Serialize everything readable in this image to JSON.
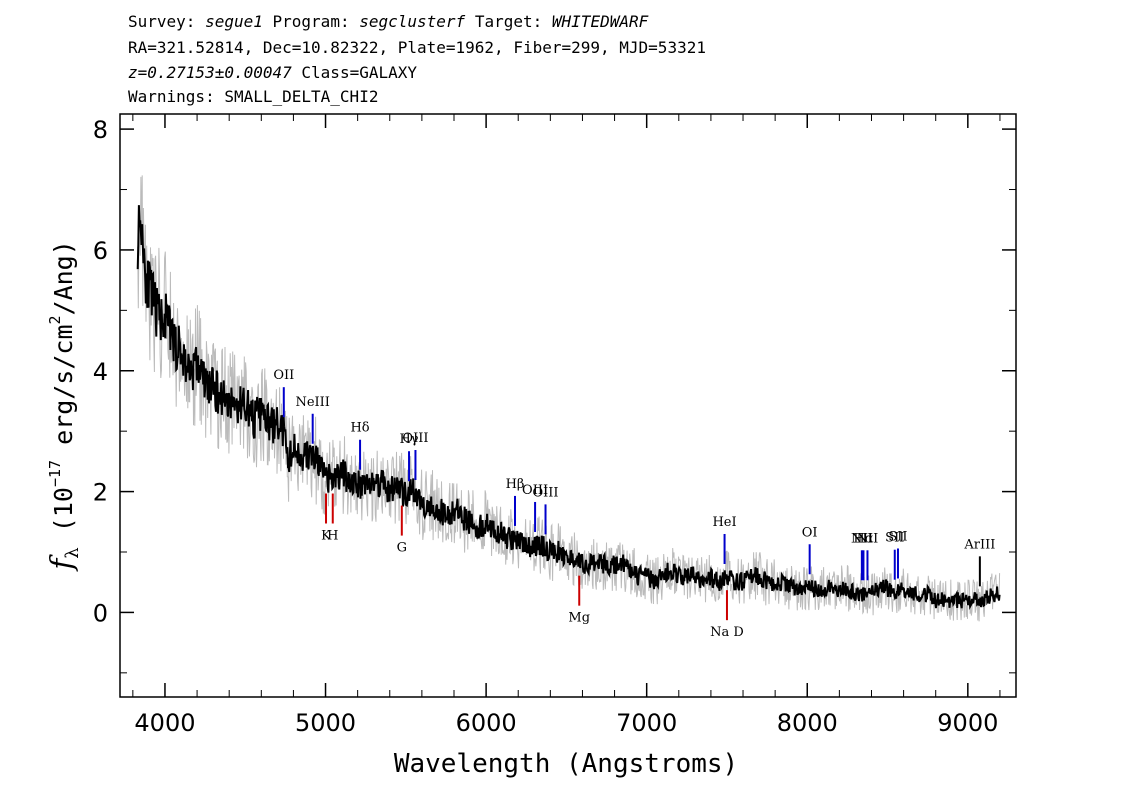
{
  "header": {
    "survey_label": "Survey:",
    "survey": "segue1",
    "program_label": "Program:",
    "program": "segclusterf",
    "target_label": "Target:",
    "target": "WHITEDWARF",
    "line2": "RA=321.52814, Dec=10.82322, Plate=1962, Fiber=299, MJD=53321",
    "redshift": "z=0.27153±0.00047",
    "class_text": "Class=GALAXY",
    "warnings": "Warnings: SMALL_DELTA_CHI2"
  },
  "chart_data": {
    "type": "line",
    "xlabel": "Wavelength (Angstroms)",
    "ylabel": "f_λ (10^-17 erg/s/cm^2/Ang)",
    "ylabel_parts": {
      "f": "f",
      "lambda": "λ",
      "open": " (10",
      "exp1": "−17",
      "mid": " erg/s/cm",
      "exp2": "2",
      "close": "/Ang)"
    },
    "xlim": [
      3720,
      9300
    ],
    "ylim": [
      -1.4,
      8.25
    ],
    "xticks": [
      4000,
      5000,
      6000,
      7000,
      8000,
      9000
    ],
    "yticks": [
      0,
      2,
      4,
      6,
      8
    ],
    "series": [
      {
        "role": "flux",
        "color": "#000000",
        "x": [
          3830,
          3850,
          3880,
          3920,
          3960,
          4000,
          4050,
          4100,
          4150,
          4200,
          4250,
          4300,
          4350,
          4400,
          4450,
          4500,
          4550,
          4600,
          4650,
          4700,
          4740,
          4760,
          4800,
          4850,
          4900,
          4950,
          5000,
          5050,
          5100,
          5150,
          5200,
          5250,
          5300,
          5350,
          5400,
          5450,
          5500,
          5550,
          5600,
          5650,
          5700,
          5750,
          5800,
          5850,
          5900,
          5950,
          6000,
          6050,
          6100,
          6150,
          6200,
          6250,
          6300,
          6350,
          6400,
          6450,
          6500,
          6550,
          6600,
          6650,
          6700,
          6750,
          6800,
          6850,
          6900,
          6950,
          7000,
          7050,
          7100,
          7150,
          7200,
          7250,
          7300,
          7350,
          7400,
          7450,
          7500,
          7550,
          7600,
          7650,
          7700,
          7750,
          7800,
          7850,
          7900,
          7950,
          8000,
          8050,
          8100,
          8150,
          8200,
          8250,
          8300,
          8350,
          8400,
          8450,
          8500,
          8550,
          8600,
          8650,
          8700,
          8750,
          8800,
          8850,
          8900,
          8950,
          9000,
          9050,
          9100,
          9150,
          9200
        ],
        "y": [
          6.2,
          6.6,
          5.6,
          5.2,
          4.9,
          4.9,
          4.5,
          4.3,
          4.0,
          4.1,
          3.8,
          3.7,
          3.6,
          3.5,
          3.4,
          3.5,
          3.2,
          3.3,
          3.1,
          3.1,
          3.0,
          2.5,
          2.7,
          2.6,
          2.6,
          2.5,
          2.2,
          2.2,
          2.3,
          2.2,
          2.1,
          2.2,
          2.1,
          2.2,
          2.0,
          2.1,
          1.9,
          2.0,
          1.8,
          1.8,
          1.7,
          1.6,
          1.7,
          1.6,
          1.5,
          1.4,
          1.5,
          1.3,
          1.3,
          1.2,
          1.2,
          1.1,
          1.1,
          1.1,
          1.0,
          1.0,
          0.9,
          0.9,
          0.8,
          0.8,
          0.8,
          0.8,
          0.8,
          0.8,
          0.7,
          0.6,
          0.6,
          0.5,
          0.6,
          0.7,
          0.6,
          0.6,
          0.6,
          0.5,
          0.6,
          0.5,
          0.6,
          0.5,
          0.5,
          0.6,
          0.6,
          0.5,
          0.5,
          0.5,
          0.4,
          0.4,
          0.4,
          0.4,
          0.4,
          0.4,
          0.4,
          0.4,
          0.3,
          0.3,
          0.3,
          0.4,
          0.4,
          0.3,
          0.4,
          0.3,
          0.3,
          0.3,
          0.2,
          0.2,
          0.2,
          0.2,
          0.2,
          0.2,
          0.2,
          0.3,
          0.3
        ]
      }
    ],
    "emission_lines": [
      {
        "label": "OII",
        "x": 4740,
        "color": "#0000cc"
      },
      {
        "label": "NeIII",
        "x": 4920,
        "color": "#0000cc"
      },
      {
        "label": "Hδ",
        "x": 5215,
        "color": "#0000cc"
      },
      {
        "label": "Hγ",
        "x": 5520,
        "color": "#0000cc"
      },
      {
        "label": "OIII",
        "x": 5560,
        "color": "#0000cc"
      },
      {
        "label": "Hβ",
        "x": 6180,
        "color": "#0000cc"
      },
      {
        "label": "OIII",
        "x": 6305,
        "color": "#0000cc"
      },
      {
        "label": "OIII",
        "x": 6370,
        "color": "#0000cc"
      },
      {
        "label": "HeI",
        "x": 7485,
        "color": "#0000cc"
      },
      {
        "label": "OI",
        "x": 8015,
        "color": "#0000cc"
      },
      {
        "label": "NII",
        "x": 8340,
        "color": "#0000cc"
      },
      {
        "label": "Hα",
        "x": 8350,
        "color": "#0000cc"
      },
      {
        "label": "NII",
        "x": 8375,
        "color": "#0000cc"
      },
      {
        "label": "SII",
        "x": 8545,
        "color": "#0000cc"
      },
      {
        "label": "SII",
        "x": 8565,
        "color": "#0000cc"
      },
      {
        "label": "ArIII",
        "x": 9075,
        "color": "#000000"
      }
    ],
    "absorption_lines": [
      {
        "label": "K",
        "x": 5003,
        "color": "#cc0000"
      },
      {
        "label": "H",
        "x": 5045,
        "color": "#cc0000"
      },
      {
        "label": "G",
        "x": 5475,
        "color": "#cc0000"
      },
      {
        "label": "Mg",
        "x": 6580,
        "color": "#cc0000"
      },
      {
        "label": "Na D",
        "x": 7500,
        "color": "#cc0000"
      }
    ],
    "colors": {
      "flux": "#000000",
      "error": "#bbbbbb",
      "emission": "#0000cc",
      "absorption": "#cc0000"
    }
  }
}
